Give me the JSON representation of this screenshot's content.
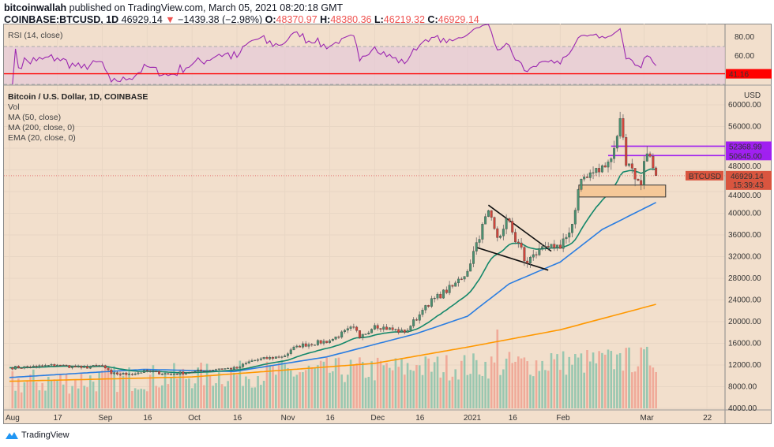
{
  "header": {
    "author": "bitcoinwallah",
    "published": "published on TradingView.com, March 05, 2021 08:20:18 GMT",
    "symbol": "COINBASE:BTCUSD, 1D",
    "last": "46929.14",
    "change": "−1439.38 (−2.98%)",
    "o_label": "O:",
    "o": "48370.97",
    "h_label": "H:",
    "h": "48380.36",
    "l_label": "L:",
    "l": "46219.32",
    "c_label": "C:",
    "c": "46929.14"
  },
  "legend": {
    "rsi": "RSI (14, close)",
    "title": "Bitcoin / U.S. Dollar, 1D, COINBASE",
    "vol": "Vol",
    "ma50": "MA (50, close)",
    "ma200": "MA (200, close, 0)",
    "ema20": "EMA (20, close, 0)"
  },
  "price_axis": {
    "unit": "USD",
    "ticks": [
      "60000.00",
      "56000.00",
      "48000.00",
      "44000.00",
      "40000.00",
      "36000.00",
      "32000.00",
      "28000.00",
      "24000.00",
      "20000.00",
      "16000.00",
      "12000.00",
      "8000.00",
      "4000.00"
    ]
  },
  "rsi_axis": {
    "ticks": [
      "80.00",
      "60.00"
    ],
    "marker": "41.16"
  },
  "labels": {
    "symbol_tag": "BTCUSD",
    "price_tag": "46929.14",
    "countdown": "15:39:43",
    "level1": "52368.99",
    "level2": "50645.00"
  },
  "x_axis": [
    "Aug",
    "17",
    "Sep",
    "16",
    "Oct",
    "16",
    "Nov",
    "16",
    "Dec",
    "16",
    "2021",
    "16",
    "Feb",
    "Mar",
    "22"
  ],
  "brand": "TradingView",
  "colors": {
    "bg": "#f2dfcc",
    "up": "#4a9070",
    "down": "#d0453b",
    "ma50": "#2a7de1",
    "ma200": "#ff9800",
    "ema20": "#13876a",
    "rsi": "#9c27b0",
    "level": "#a020f0",
    "rsi_marker": "#ff0000"
  },
  "chart_data": {
    "type": "candlestick",
    "title": "Bitcoin / U.S. Dollar, 1D, COINBASE",
    "ylim": [
      4000,
      62000
    ],
    "log_scale": false,
    "closes": [
      [
        "2020-08-01",
        11500
      ],
      [
        "2020-08-10",
        11700
      ],
      [
        "2020-08-17",
        12000
      ],
      [
        "2020-08-25",
        11500
      ],
      [
        "2020-09-01",
        11900
      ],
      [
        "2020-09-04",
        10400
      ],
      [
        "2020-09-10",
        10300
      ],
      [
        "2020-09-16",
        10900
      ],
      [
        "2020-09-23",
        10300
      ],
      [
        "2020-10-01",
        10700
      ],
      [
        "2020-10-10",
        11300
      ],
      [
        "2020-10-16",
        11400
      ],
      [
        "2020-10-21",
        12800
      ],
      [
        "2020-11-01",
        13700
      ],
      [
        "2020-11-05",
        15500
      ],
      [
        "2020-11-16",
        16500
      ],
      [
        "2020-11-24",
        19000
      ],
      [
        "2020-11-26",
        17000
      ],
      [
        "2020-12-01",
        19300
      ],
      [
        "2020-12-11",
        18000
      ],
      [
        "2020-12-16",
        21300
      ],
      [
        "2020-12-18",
        23000
      ],
      [
        "2020-12-27",
        26500
      ],
      [
        "2021-01-01",
        29300
      ],
      [
        "2021-01-03",
        33000
      ],
      [
        "2021-01-08",
        40500
      ],
      [
        "2021-01-11",
        35500
      ],
      [
        "2021-01-14",
        39000
      ],
      [
        "2021-01-16",
        36500
      ],
      [
        "2021-01-21",
        30800
      ],
      [
        "2021-01-24",
        32300
      ],
      [
        "2021-01-29",
        34300
      ],
      [
        "2021-02-01",
        33500
      ],
      [
        "2021-02-05",
        38000
      ],
      [
        "2021-02-08",
        46300
      ],
      [
        "2021-02-12",
        47500
      ],
      [
        "2021-02-16",
        48500
      ],
      [
        "2021-02-19",
        52000
      ],
      [
        "2021-02-21",
        57500
      ],
      [
        "2021-02-22",
        54000
      ],
      [
        "2021-02-23",
        48800
      ],
      [
        "2021-02-26",
        46300
      ],
      [
        "2021-02-28",
        45200
      ],
      [
        "2021-03-01",
        49600
      ],
      [
        "2021-03-03",
        50500
      ],
      [
        "2021-03-04",
        48370
      ],
      [
        "2021-03-05",
        46929
      ]
    ],
    "ma50": [
      [
        "2020-08-01",
        9700
      ],
      [
        "2020-09-15",
        11200
      ],
      [
        "2020-10-15",
        10800
      ],
      [
        "2020-11-15",
        13500
      ],
      [
        "2020-12-15",
        17800
      ],
      [
        "2021-01-01",
        21000
      ],
      [
        "2021-01-15",
        27000
      ],
      [
        "2021-02-01",
        31000
      ],
      [
        "2021-02-15",
        37000
      ],
      [
        "2021-03-05",
        42000
      ]
    ],
    "ma200": [
      [
        "2020-08-01",
        9000
      ],
      [
        "2020-10-01",
        9800
      ],
      [
        "2020-12-01",
        12300
      ],
      [
        "2021-01-01",
        15300
      ],
      [
        "2021-02-01",
        18500
      ],
      [
        "2021-03-05",
        23200
      ]
    ],
    "levels": [
      52368.99,
      50645.0
    ],
    "support_zone": [
      43000,
      45200
    ],
    "rsi_level": 41.16
  }
}
